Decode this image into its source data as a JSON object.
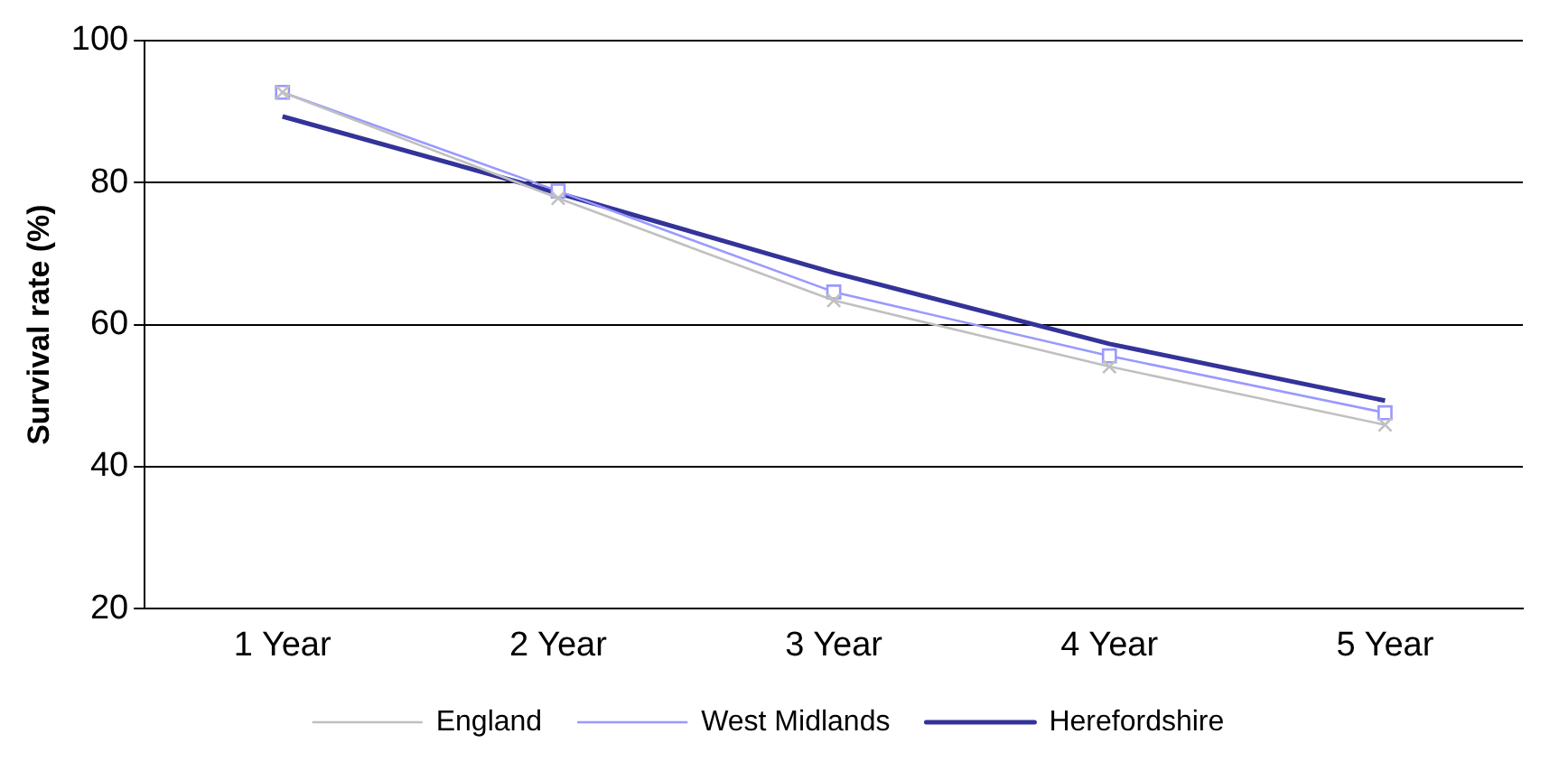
{
  "chart_data": {
    "type": "line",
    "ylabel": "Survival rate (%)",
    "categories": [
      "1 Year",
      "2 Year",
      "3 Year",
      "4 Year",
      "5 Year"
    ],
    "series": [
      {
        "name": "England",
        "color": "#c0c0c0",
        "marker": "cross",
        "values": [
          92.7,
          77.8,
          63.4,
          54.1,
          45.9
        ]
      },
      {
        "name": "West Midlands",
        "color": "#9999ff",
        "marker": "square",
        "values": [
          92.7,
          78.8,
          64.6,
          55.6,
          47.6
        ]
      },
      {
        "name": "Herefordshire",
        "color": "#333399",
        "marker": "none",
        "values": [
          89.3,
          78.5,
          67.3,
          57.3,
          49.3
        ]
      }
    ],
    "ylim": [
      20,
      100
    ],
    "yticks": [
      20,
      40,
      60,
      80,
      100
    ],
    "grid": "y",
    "legend": "bottom"
  }
}
